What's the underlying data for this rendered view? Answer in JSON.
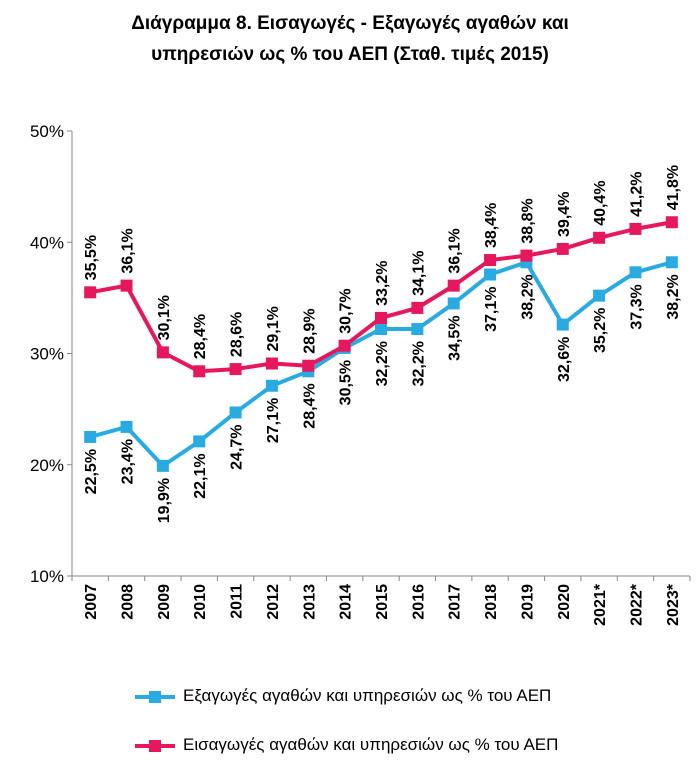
{
  "chart_data": {
    "type": "line",
    "title_line1": "Διάγραμμα 8. Εισαγωγές - Εξαγωγές αγαθών και",
    "title_line2": "υπηρεσιών ως % του ΑΕΠ (Σταθ. τιμές 2015)",
    "categories": [
      "2007",
      "2008",
      "2009",
      "2010",
      "2011",
      "2012",
      "2013",
      "2014",
      "2015",
      "2016",
      "2017",
      "2018",
      "2019",
      "2020",
      "2021*",
      "2022*",
      "2023*"
    ],
    "ylim": [
      10,
      50
    ],
    "yticks": [
      10,
      20,
      30,
      40,
      50
    ],
    "ytick_labels": [
      "10%",
      "20%",
      "30%",
      "40%",
      "50%"
    ],
    "grid": false,
    "legend_position": "bottom",
    "series": [
      {
        "name": "Εξαγωγές αγαθών και υπηρεσιών ως % του ΑΕΠ",
        "color": "#29abe2",
        "marker": "square",
        "values": [
          22.5,
          23.4,
          19.9,
          22.1,
          24.7,
          27.1,
          28.4,
          30.5,
          32.2,
          32.2,
          34.5,
          37.1,
          38.2,
          32.6,
          35.2,
          37.3,
          38.2
        ],
        "labels": [
          "22,5%",
          "23,4%",
          "19,9%",
          "22,1%",
          "24,7%",
          "27,1%",
          "28,4%",
          "30,5%",
          "32,2%",
          "32,2%",
          "34,5%",
          "37,1%",
          "38,2%",
          "32,6%",
          "35,2%",
          "37,3%",
          "38,2%"
        ]
      },
      {
        "name": "Εισαγωγές αγαθών και υπηρεσιών ως % του ΑΕΠ",
        "color": "#e6175c",
        "marker": "square",
        "values": [
          35.5,
          36.1,
          30.1,
          28.4,
          28.6,
          29.1,
          28.9,
          30.7,
          33.2,
          34.1,
          36.1,
          38.4,
          38.8,
          39.4,
          40.4,
          41.2,
          41.8
        ],
        "labels": [
          "35,5%",
          "36,1%",
          "30,1%",
          "28,4%",
          "28,6%",
          "29,1%",
          "28,9%",
          "30,7%",
          "33,2%",
          "34,1%",
          "36,1%",
          "38,4%",
          "38,8%",
          "39,4%",
          "40,4%",
          "41,2%",
          "41,8%"
        ]
      }
    ]
  }
}
